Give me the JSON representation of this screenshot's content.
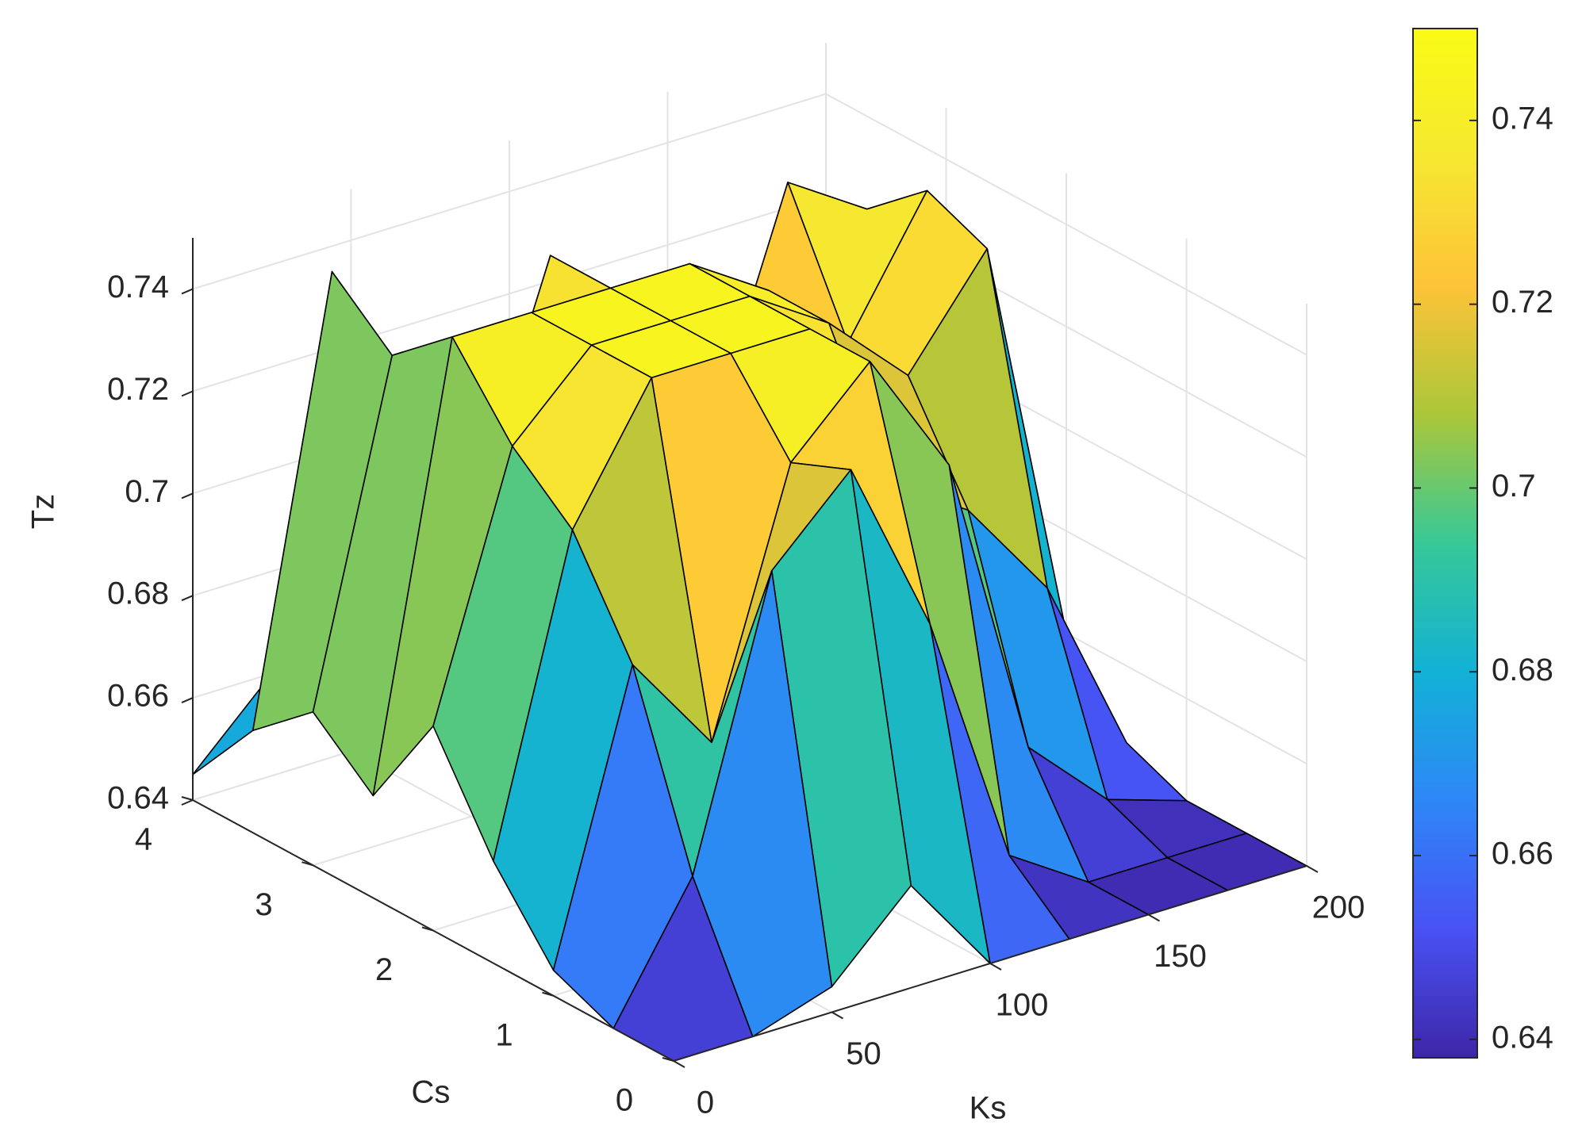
{
  "chart_data": {
    "type": "surface",
    "xlabel": "Ks",
    "ylabel": "Cs",
    "zlabel": "Tz",
    "x": [
      0,
      25,
      50,
      75,
      100,
      125,
      150,
      175,
      200
    ],
    "y": [
      0,
      0.5,
      1,
      1.5,
      2,
      2.5,
      3,
      3.5,
      4
    ],
    "z": [
      [
        0.64,
        0.64,
        0.645,
        0.66,
        0.64,
        0.64,
        0.64,
        0.64,
        0.64
      ],
      [
        0.64,
        0.665,
        0.72,
        0.735,
        0.7,
        0.65,
        0.64,
        0.64,
        0.64
      ],
      [
        0.645,
        0.7,
        0.68,
        0.73,
        0.745,
        0.72,
        0.66,
        0.645,
        0.64
      ],
      [
        0.66,
        0.72,
        0.745,
        0.745,
        0.745,
        0.71,
        0.7,
        0.68,
        0.645
      ],
      [
        0.68,
        0.73,
        0.745,
        0.745,
        0.745,
        0.735,
        0.72,
        0.74,
        0.66
      ],
      [
        0.66,
        0.745,
        0.745,
        0.745,
        0.745,
        0.735,
        0.72,
        0.745,
        0.66
      ],
      [
        0.67,
        0.735,
        0.7,
        0.745,
        0.72,
        0.7,
        0.745,
        0.735,
        0.645
      ],
      [
        0.66,
        0.745,
        0.68,
        0.7,
        0.7,
        0.68,
        0.7,
        0.68,
        0.64
      ],
      [
        0.645,
        0.66,
        0.65,
        0.645,
        0.64,
        0.64,
        0.64,
        0.64,
        0.64
      ]
    ],
    "xlim": [
      0,
      200
    ],
    "xticks": [
      0,
      50,
      100,
      150,
      200
    ],
    "ylim": [
      0,
      4
    ],
    "yticks": [
      0,
      1,
      2,
      3,
      4
    ],
    "zlim": [
      0.64,
      0.75
    ],
    "zticks": [
      0.64,
      0.66,
      0.68,
      0.7,
      0.72,
      0.74
    ],
    "colormap": "parula",
    "clim": [
      0.638,
      0.75
    ],
    "cticks": [
      0.64,
      0.66,
      0.68,
      0.7,
      0.72,
      0.74
    ],
    "grid": true,
    "colorbar": true
  }
}
